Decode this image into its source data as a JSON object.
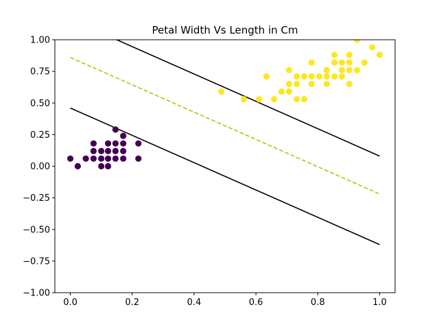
{
  "chart_data": {
    "type": "scatter",
    "title": "Petal Width Vs Length in Cm",
    "xlabel": "",
    "ylabel": "",
    "xlim": [
      -0.05,
      1.05
    ],
    "ylim": [
      -1.0,
      1.0
    ],
    "grid": false,
    "legend": "none",
    "x_ticks": [
      0.0,
      0.2,
      0.4,
      0.6,
      0.8,
      1.0
    ],
    "x_tick_labels": [
      "0.0",
      "0.2",
      "0.4",
      "0.6",
      "0.8",
      "1.0"
    ],
    "y_ticks": [
      -1.0,
      -0.75,
      -0.5,
      -0.25,
      0.0,
      0.25,
      0.5,
      0.75,
      1.0
    ],
    "y_tick_labels": [
      "−1.00",
      "−0.75",
      "−0.50",
      "−0.25",
      "0.00",
      "0.25",
      "0.50",
      "0.75",
      "1.00"
    ],
    "series": [
      {
        "color": "#440154",
        "points": [
          [
            0.0,
            0.06
          ],
          [
            0.024,
            0.0
          ],
          [
            0.05,
            0.06
          ],
          [
            0.075,
            0.06
          ],
          [
            0.075,
            0.12
          ],
          [
            0.075,
            0.18
          ],
          [
            0.1,
            0.0
          ],
          [
            0.1,
            0.06
          ],
          [
            0.1,
            0.12
          ],
          [
            0.122,
            0.0
          ],
          [
            0.122,
            0.06
          ],
          [
            0.122,
            0.12
          ],
          [
            0.122,
            0.18
          ],
          [
            0.146,
            0.06
          ],
          [
            0.146,
            0.12
          ],
          [
            0.146,
            0.18
          ],
          [
            0.146,
            0.29
          ],
          [
            0.171,
            0.06
          ],
          [
            0.171,
            0.12
          ],
          [
            0.171,
            0.18
          ],
          [
            0.171,
            0.24
          ],
          [
            0.22,
            0.06
          ],
          [
            0.22,
            0.18
          ]
        ]
      },
      {
        "color": "#fde725",
        "points": [
          [
            0.488,
            0.59
          ],
          [
            0.561,
            0.53
          ],
          [
            0.61,
            0.53
          ],
          [
            0.634,
            0.71
          ],
          [
            0.659,
            0.53
          ],
          [
            0.683,
            0.59
          ],
          [
            0.707,
            0.59
          ],
          [
            0.707,
            0.65
          ],
          [
            0.707,
            0.76
          ],
          [
            0.732,
            0.53
          ],
          [
            0.732,
            0.65
          ],
          [
            0.732,
            0.71
          ],
          [
            0.756,
            0.53
          ],
          [
            0.756,
            0.71
          ],
          [
            0.78,
            0.65
          ],
          [
            0.78,
            0.71
          ],
          [
            0.78,
            0.82
          ],
          [
            0.805,
            0.71
          ],
          [
            0.829,
            0.65
          ],
          [
            0.829,
            0.71
          ],
          [
            0.829,
            0.76
          ],
          [
            0.854,
            0.71
          ],
          [
            0.854,
            0.82
          ],
          [
            0.854,
            0.88
          ],
          [
            0.878,
            0.71
          ],
          [
            0.878,
            0.76
          ],
          [
            0.878,
            0.82
          ],
          [
            0.902,
            0.65
          ],
          [
            0.902,
            0.76
          ],
          [
            0.902,
            0.82
          ],
          [
            0.902,
            0.88
          ],
          [
            0.927,
            0.76
          ],
          [
            0.927,
            1.0
          ],
          [
            0.951,
            0.82
          ],
          [
            0.976,
            0.94
          ],
          [
            1.0,
            0.88
          ]
        ]
      }
    ],
    "lines": [
      {
        "style": "solid",
        "color": "#000000",
        "x": [
          0.0,
          1.0
        ],
        "y": [
          0.46,
          -0.62
        ]
      },
      {
        "style": "dashed",
        "color": "#bfbf00",
        "x": [
          0.0,
          1.0
        ],
        "y": [
          0.86,
          -0.22
        ]
      },
      {
        "style": "solid",
        "color": "#000000",
        "x": [
          0.15,
          1.0
        ],
        "y": [
          1.0,
          0.08
        ]
      }
    ]
  }
}
